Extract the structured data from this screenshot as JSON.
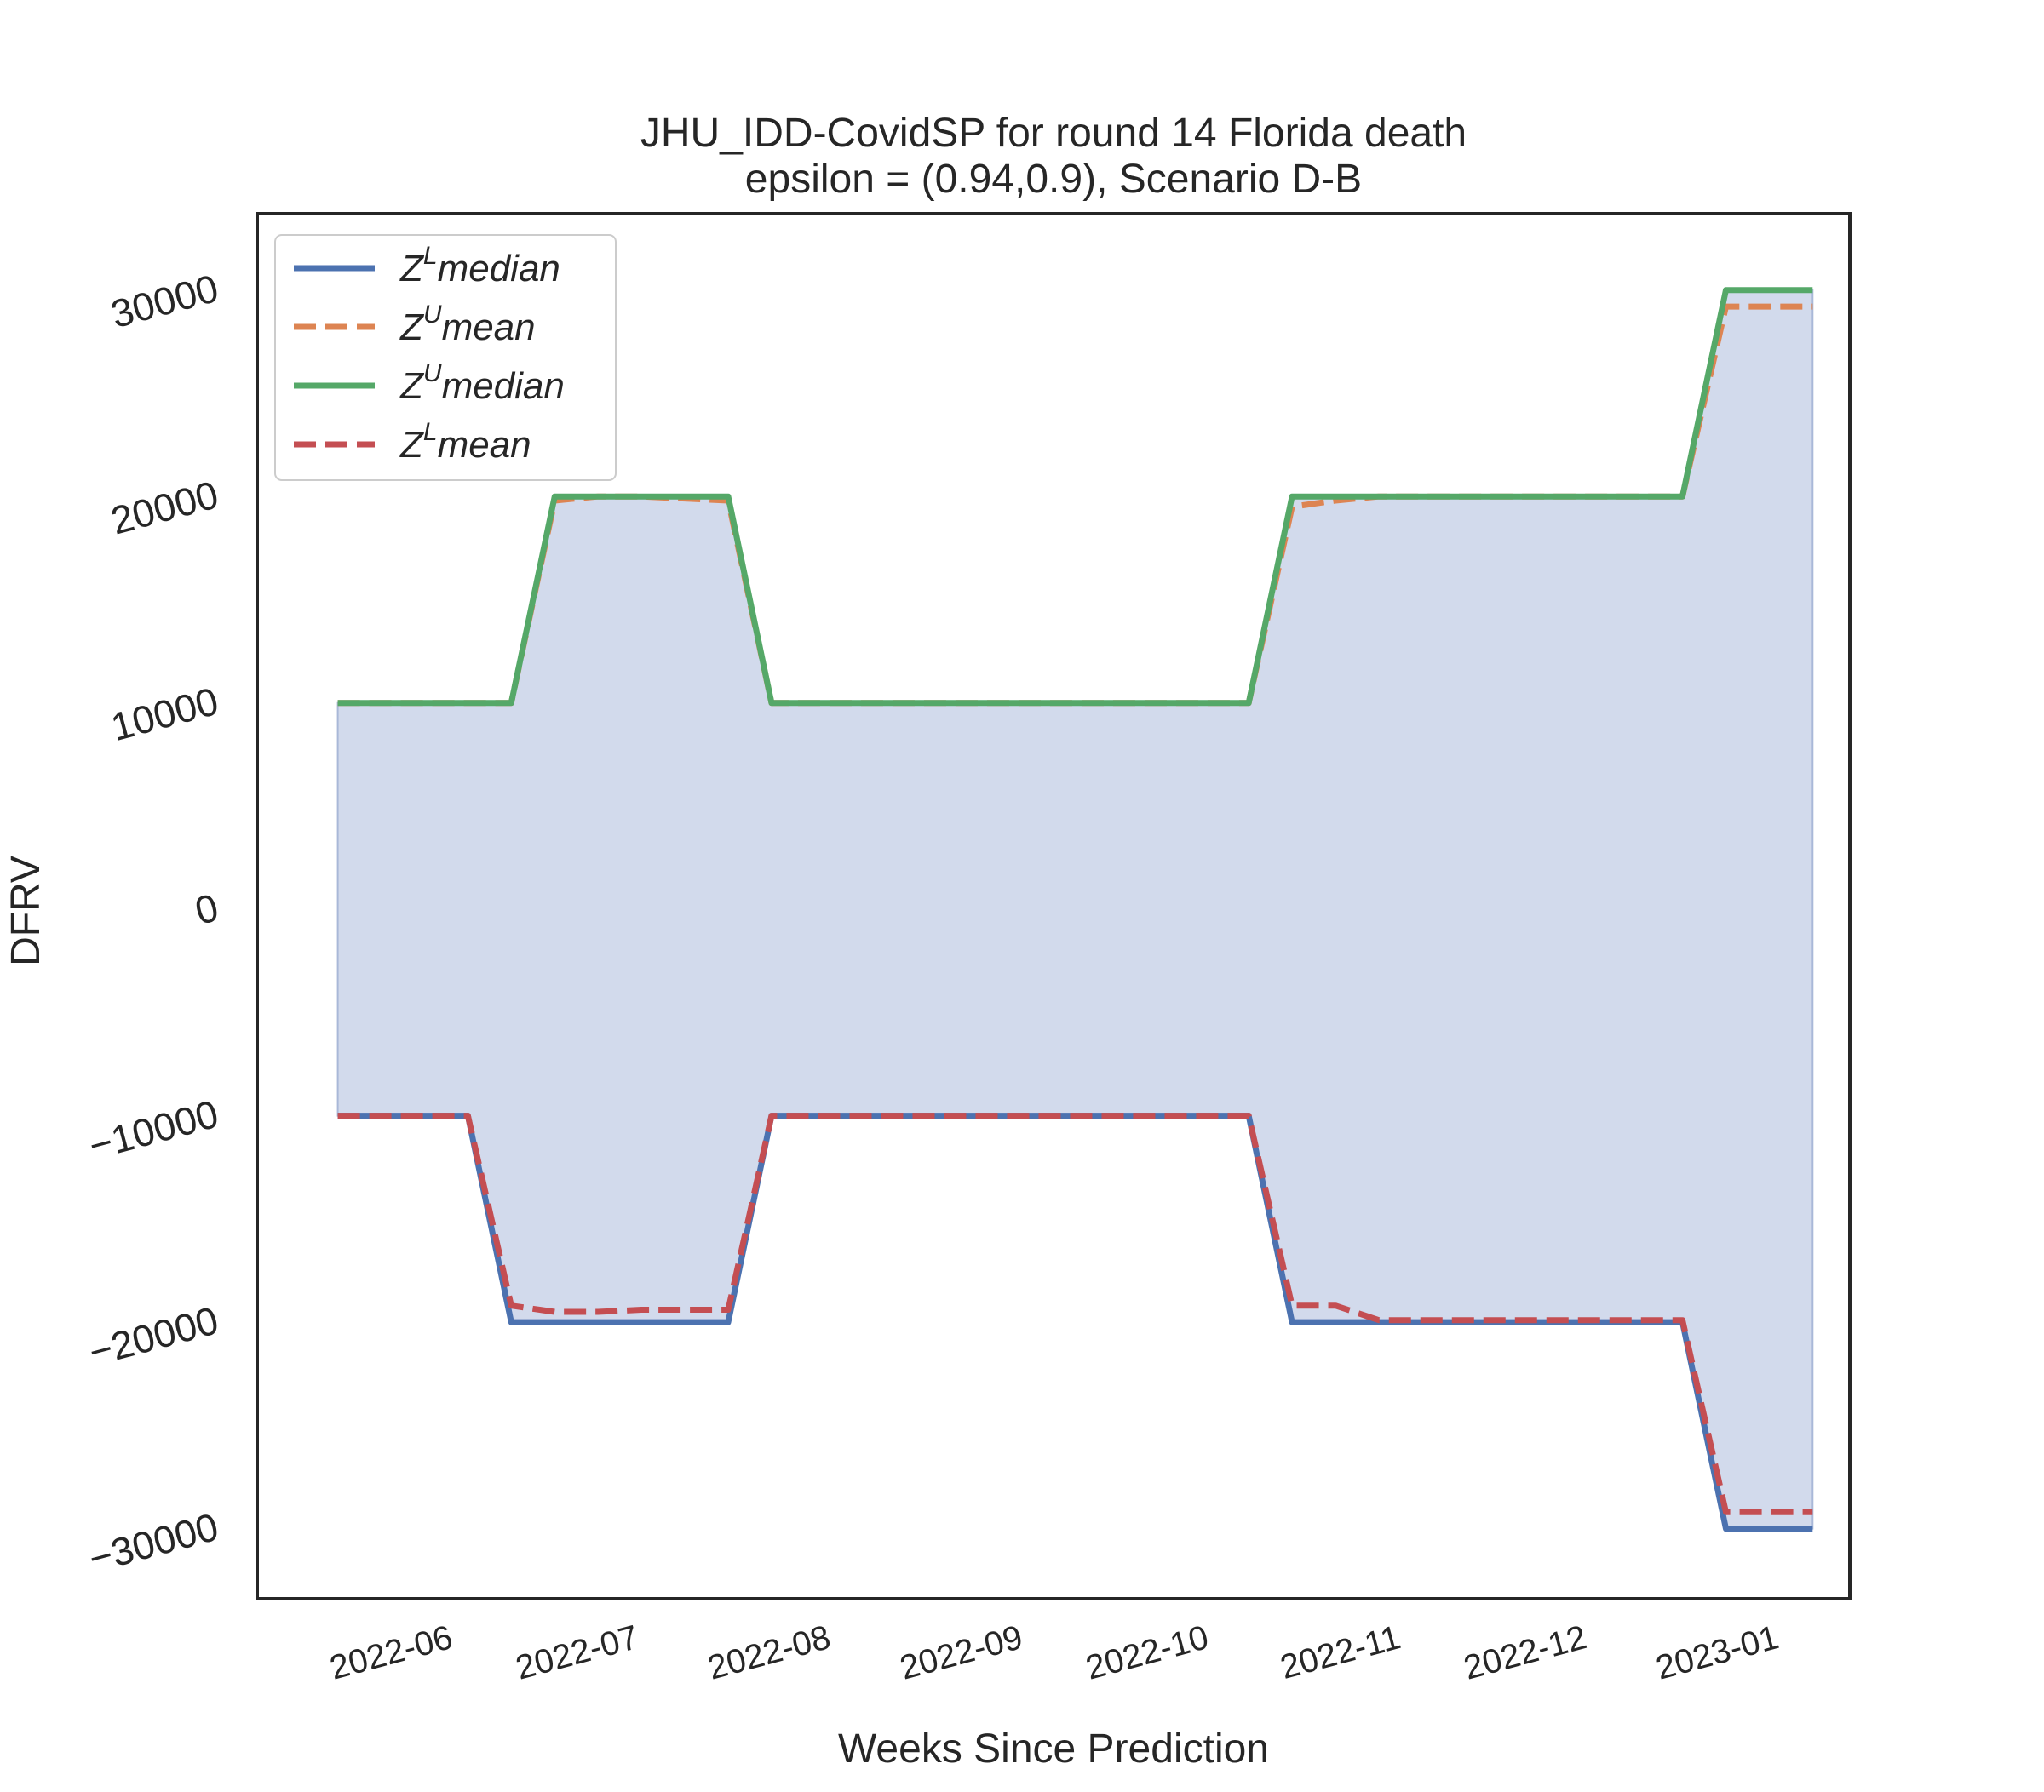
{
  "chart_data": {
    "type": "line",
    "title": "JHU_IDD-CovidSP for round 14 Florida  death",
    "subtitle": "epsilon = (0.94,0.9), Scenario D-B",
    "xlabel": "Weeks Since Prediction",
    "ylabel": "DFRV",
    "ylim": [
      -33400,
      33700
    ],
    "yticks": [
      30000,
      20000,
      10000,
      0,
      -10000,
      -20000,
      -30000
    ],
    "ytick_labels": [
      "30000",
      "20000",
      "10000",
      "0",
      "−10000",
      "−20000",
      "−30000"
    ],
    "xticks": [
      "2022-06-01",
      "2022-07-01",
      "2022-08-01",
      "2022-09-01",
      "2022-10-01",
      "2022-11-01",
      "2022-12-01",
      "2023-01-01"
    ],
    "xtick_labels": [
      "2022-06",
      "2022-07",
      "2022-08",
      "2022-09",
      "2022-10",
      "2022-11",
      "2022-12",
      "2023-01"
    ],
    "xlim": [
      "2022-05-01",
      "2023-01-13"
    ],
    "grid": false,
    "legend_position": "top-left",
    "fill_between": {
      "lower_series": "Z^L median",
      "upper_series": "Z^U median",
      "color": "#c3cee5"
    },
    "x": [
      "2022-05-14",
      "2022-05-21",
      "2022-05-28",
      "2022-06-04",
      "2022-06-11",
      "2022-06-18",
      "2022-06-25",
      "2022-07-02",
      "2022-07-09",
      "2022-07-16",
      "2022-07-23",
      "2022-07-30",
      "2022-08-06",
      "2022-08-13",
      "2022-08-20",
      "2022-08-27",
      "2022-09-03",
      "2022-09-10",
      "2022-09-17",
      "2022-09-24",
      "2022-10-01",
      "2022-10-08",
      "2022-10-15",
      "2022-10-22",
      "2022-10-29",
      "2022-11-05",
      "2022-11-12",
      "2022-11-19",
      "2022-11-26",
      "2022-12-03",
      "2022-12-10",
      "2022-12-17",
      "2022-12-24",
      "2022-12-31",
      "2023-01-07"
    ],
    "series": [
      {
        "name": "Z^L median",
        "legend_base": "Z",
        "legend_sup": "L",
        "legend_rest": "median",
        "color": "#4c72b0",
        "dash": "solid",
        "values": [
          -10000,
          -10000,
          -10000,
          -10000,
          -20000,
          -20000,
          -20000,
          -20000,
          -20000,
          -20000,
          -10000,
          -10000,
          -10000,
          -10000,
          -10000,
          -10000,
          -10000,
          -10000,
          -10000,
          -10000,
          -10000,
          -10000,
          -20000,
          -20000,
          -20000,
          -20000,
          -20000,
          -20000,
          -20000,
          -20000,
          -20000,
          -20000,
          -30000,
          -30000,
          -30000
        ]
      },
      {
        "name": "Z^U mean",
        "legend_base": "Z",
        "legend_sup": "U",
        "legend_rest": "mean",
        "color": "#dd8452",
        "dash": "dashed",
        "values": [
          10000,
          10000,
          10000,
          10000,
          10000,
          19800,
          20000,
          20000,
          19900,
          19800,
          10000,
          10000,
          10000,
          10000,
          10000,
          10000,
          10000,
          10000,
          10000,
          10000,
          10000,
          10000,
          19500,
          19800,
          20000,
          20000,
          20000,
          20000,
          20000,
          20000,
          20000,
          20000,
          29200,
          29200,
          29200
        ]
      },
      {
        "name": "Z^U median",
        "legend_base": "Z",
        "legend_sup": "U",
        "legend_rest": "median",
        "color": "#55a868",
        "dash": "solid",
        "values": [
          10000,
          10000,
          10000,
          10000,
          10000,
          20000,
          20000,
          20000,
          20000,
          20000,
          10000,
          10000,
          10000,
          10000,
          10000,
          10000,
          10000,
          10000,
          10000,
          10000,
          10000,
          10000,
          20000,
          20000,
          20000,
          20000,
          20000,
          20000,
          20000,
          20000,
          20000,
          20000,
          30000,
          30000,
          30000
        ]
      },
      {
        "name": "Z^L mean",
        "legend_base": "Z",
        "legend_sup": "L",
        "legend_rest": "mean",
        "color": "#c44e52",
        "dash": "dashed",
        "values": [
          -10000,
          -10000,
          -10000,
          -10000,
          -19200,
          -19500,
          -19500,
          -19400,
          -19400,
          -19400,
          -10000,
          -10000,
          -10000,
          -10000,
          -10000,
          -10000,
          -10000,
          -10000,
          -10000,
          -10000,
          -10000,
          -10000,
          -19200,
          -19200,
          -19900,
          -19900,
          -19900,
          -19900,
          -19900,
          -19900,
          -19900,
          -19900,
          -29200,
          -29200,
          -29200
        ]
      }
    ]
  }
}
